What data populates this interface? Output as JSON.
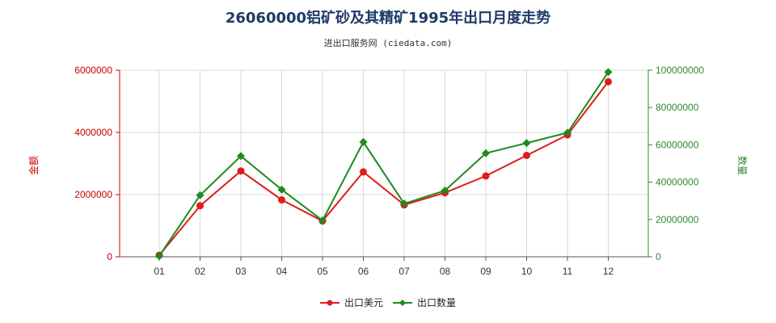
{
  "chart_data": {
    "type": "line",
    "title": "26060000铝矿砂及其精矿1995年出口月度走势",
    "subtitle": "进出口服务网 (ciedata.com)",
    "categories": [
      "01",
      "02",
      "03",
      "04",
      "05",
      "06",
      "07",
      "08",
      "09",
      "10",
      "11",
      "12"
    ],
    "y_left": {
      "label": "金额",
      "ticks": [
        "0",
        "2000000",
        "4000000",
        "6000000"
      ],
      "lim": [
        0,
        6000000
      ]
    },
    "y_right": {
      "label": "数量",
      "ticks": [
        "0",
        "20000000",
        "40000000",
        "60000000",
        "80000000",
        "100000000"
      ],
      "lim": [
        0,
        100000000
      ]
    },
    "grid": true,
    "legend_position": "bottom",
    "series": [
      {
        "name": "出口美元",
        "axis": "left",
        "color": "#e01b1b",
        "values": [
          50000,
          1640000,
          2760000,
          1830000,
          1150000,
          2730000,
          1670000,
          2060000,
          2600000,
          3260000,
          3920000,
          5630000
        ]
      },
      {
        "name": "出口数量",
        "axis": "right",
        "color": "#1f8a1f",
        "values": [
          400000,
          33000000,
          54000000,
          36000000,
          19500000,
          61500000,
          28500000,
          35500000,
          55500000,
          61000000,
          66500000,
          99000000
        ]
      }
    ]
  }
}
